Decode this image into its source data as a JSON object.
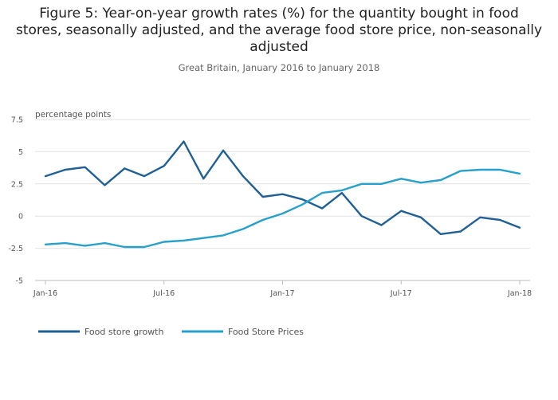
{
  "chart_data": {
    "type": "line",
    "title": "Figure 5: Year-on-year growth rates (%) for the quantity bought in food stores, seasonally adjusted, and the average food store price, non-seasonally adjusted",
    "subtitle": "Great Britain, January 2016 to January 2018",
    "ylabel": "percentage points",
    "xlabel": "",
    "ylim": [
      -5,
      7.5
    ],
    "yticks": [
      {
        "value": 7.5,
        "label": "7.5"
      },
      {
        "value": 5,
        "label": "5"
      },
      {
        "value": 2.5,
        "label": "2.5"
      },
      {
        "value": 0,
        "label": "0"
      },
      {
        "value": -2.5,
        "label": "-2.5"
      },
      {
        "value": -5,
        "label": "-5"
      }
    ],
    "x": [
      "2016-01",
      "2016-02",
      "2016-03",
      "2016-04",
      "2016-05",
      "2016-06",
      "2016-07",
      "2016-08",
      "2016-09",
      "2016-10",
      "2016-11",
      "2016-12",
      "2017-01",
      "2017-02",
      "2017-03",
      "2017-04",
      "2017-05",
      "2017-06",
      "2017-07",
      "2017-08",
      "2017-09",
      "2017-10",
      "2017-11",
      "2017-12",
      "2018-01"
    ],
    "xticks": [
      {
        "x": "2016-01",
        "label": "Jan-16"
      },
      {
        "x": "2016-07",
        "label": "Jul-16"
      },
      {
        "x": "2017-01",
        "label": "Jan-17"
      },
      {
        "x": "2017-07",
        "label": "Jul-17"
      },
      {
        "x": "2018-01",
        "label": "Jan-18"
      }
    ],
    "series": [
      {
        "name": "Food store growth",
        "color": "#206095",
        "values": [
          3.1,
          3.6,
          3.8,
          2.4,
          3.7,
          3.1,
          3.9,
          5.8,
          2.9,
          5.1,
          3.1,
          1.5,
          1.7,
          1.3,
          0.6,
          1.8,
          0.0,
          -0.7,
          0.4,
          -0.1,
          -1.4,
          -1.2,
          -0.1,
          -0.3,
          -0.9
        ]
      },
      {
        "name": "Food Store Prices",
        "color": "#27a0cc",
        "values": [
          -2.2,
          -2.1,
          -2.3,
          -2.1,
          -2.4,
          -2.4,
          -2.0,
          -1.9,
          -1.7,
          -1.5,
          -1.0,
          -0.3,
          0.2,
          0.9,
          1.8,
          2.0,
          2.5,
          2.5,
          2.9,
          2.6,
          2.8,
          3.5,
          3.6,
          3.6,
          3.3
        ]
      }
    ],
    "grid": true,
    "legend_position": "bottom-left"
  }
}
